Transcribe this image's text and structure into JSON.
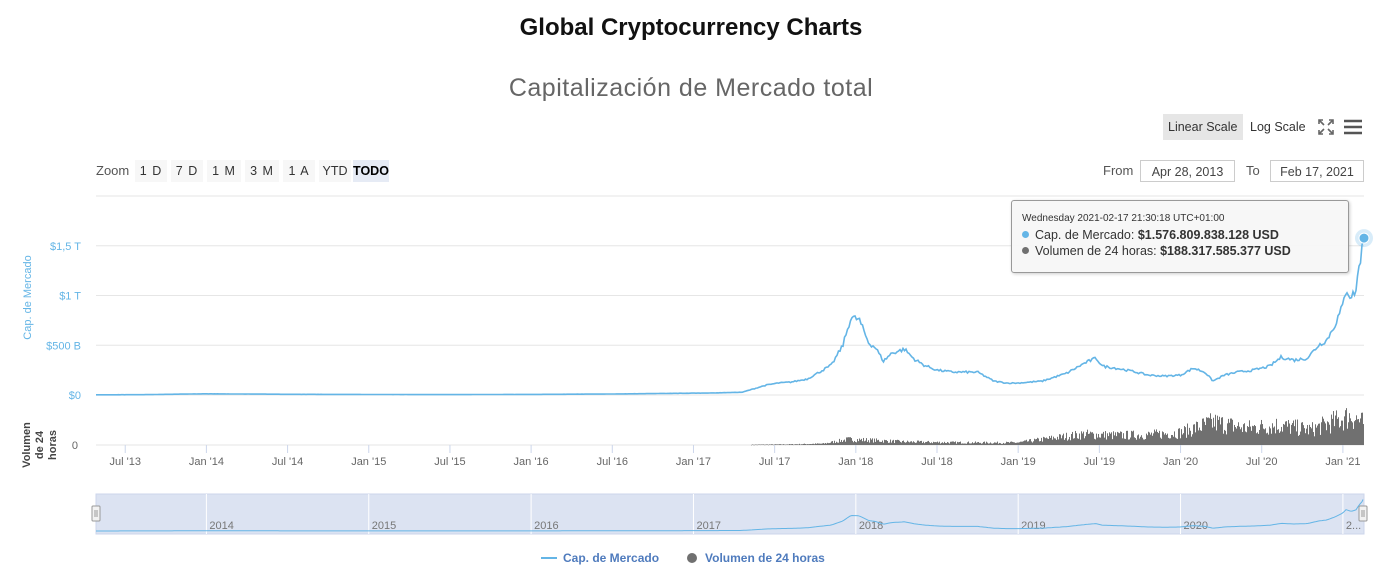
{
  "page": {
    "title": "Global Cryptocurrency Charts"
  },
  "toolbar": {
    "linear_label": "Linear Scale",
    "log_label": "Log Scale",
    "fullscreen_icon": "fullscreen-icon",
    "menu_icon": "hamburger-menu-icon"
  },
  "range_selector": {
    "zoom_label": "Zoom",
    "buttons": [
      "1 D",
      "7 D",
      "1 M",
      "3 M",
      "1 A",
      "YTD",
      "TODO"
    ],
    "active_button": "TODO",
    "from_label": "From",
    "from_value": "Apr 28, 2013",
    "to_label": "To",
    "to_value": "Feb 17, 2021"
  },
  "tooltip": {
    "date": "Wednesday 2021-02-17 21:30:18 UTC+01:00",
    "rows": [
      {
        "label": "Cap. de Mercado:",
        "value": "$1.576.809.838.128 USD"
      },
      {
        "label": "Volumen de 24 horas:",
        "value": "$188.317.585.377 USD"
      }
    ]
  },
  "colors": {
    "market_cap": "#64b5e6",
    "volume": "#707070",
    "navigator_fill": "#dce3f2",
    "legend_text": "#4f7bbd"
  },
  "chart_data": {
    "type": "line",
    "title": "Capitalización de Mercado total",
    "xlabel": "",
    "xlim": [
      2013.32,
      2021.13
    ],
    "x_ticks": [
      "Jul '13",
      "Jan '14",
      "Jul '14",
      "Jan '15",
      "Jul '15",
      "Jan '16",
      "Jul '16",
      "Jan '17",
      "Jul '17",
      "Jan '18",
      "Jul '18",
      "Jan '19",
      "Jul '19",
      "Jan '20",
      "Jul '20",
      "Jan '21"
    ],
    "x_tick_values": [
      2013.5,
      2014,
      2014.5,
      2015,
      2015.5,
      2016,
      2016.5,
      2017,
      2017.5,
      2018,
      2018.5,
      2019,
      2019.5,
      2020,
      2020.5,
      2021
    ],
    "y_axis": {
      "label": "Cap. de Mercado",
      "unit": "billion USD",
      "ylim": [
        0,
        2000
      ],
      "ticks": [
        0,
        500,
        1000,
        1500
      ],
      "tick_labels": [
        "$0",
        "$500 B",
        "$1 T",
        "$1,5 T"
      ]
    },
    "volume_axis": {
      "label_lines": [
        "Volumen",
        "de 24",
        "horas"
      ],
      "tick_labels": [
        "0"
      ],
      "ylim": [
        0,
        400
      ]
    },
    "grid": true,
    "series": [
      {
        "name": "Cap. de Mercado",
        "x": [
          2013.32,
          2013.6,
          2013.9,
          2014.0,
          2014.2,
          2014.5,
          2014.9,
          2015.0,
          2015.5,
          2016.0,
          2016.5,
          2016.9,
          2017.1,
          2017.3,
          2017.45,
          2017.52,
          2017.6,
          2017.7,
          2017.85,
          2017.92,
          2017.97,
          2018.02,
          2018.08,
          2018.12,
          2018.17,
          2018.22,
          2018.3,
          2018.36,
          2018.42,
          2018.5,
          2018.6,
          2018.75,
          2018.85,
          2018.93,
          2019.0,
          2019.15,
          2019.3,
          2019.42,
          2019.48,
          2019.52,
          2019.6,
          2019.7,
          2019.8,
          2019.9,
          2020.0,
          2020.08,
          2020.15,
          2020.2,
          2020.27,
          2020.35,
          2020.45,
          2020.55,
          2020.62,
          2020.7,
          2020.78,
          2020.85,
          2020.9,
          2020.95,
          2021.0,
          2021.02,
          2021.05,
          2021.08,
          2021.1,
          2021.13
        ],
        "values": [
          2,
          3,
          10,
          12,
          10,
          7,
          6,
          5,
          4,
          6,
          10,
          17,
          20,
          28,
          100,
          120,
          130,
          160,
          300,
          500,
          780,
          760,
          520,
          480,
          340,
          420,
          460,
          360,
          300,
          250,
          230,
          230,
          140,
          120,
          120,
          140,
          220,
          330,
          370,
          290,
          270,
          240,
          200,
          190,
          200,
          270,
          230,
          140,
          200,
          230,
          250,
          290,
          380,
          350,
          370,
          500,
          550,
          700,
          900,
          1070,
          980,
          1050,
          1300,
          1577
        ]
      },
      {
        "name": "Volumen de 24 horas",
        "x": [
          2017.35,
          2017.6,
          2017.8,
          2017.95,
          2018.05,
          2018.3,
          2018.6,
          2018.9,
          2019.0,
          2019.2,
          2019.4,
          2019.6,
          2019.8,
          2020.0,
          2020.2,
          2020.4,
          2020.6,
          2020.8,
          2020.95,
          2021.05,
          2021.13
        ],
        "values": [
          3,
          6,
          12,
          50,
          45,
          28,
          22,
          20,
          22,
          60,
          95,
          85,
          90,
          110,
          200,
          150,
          175,
          135,
          210,
          260,
          188
        ]
      }
    ],
    "navigator": {
      "labels": [
        "2014",
        "2015",
        "2016",
        "2017",
        "2018",
        "2019",
        "2020",
        "2..."
      ]
    },
    "legend": [
      "Cap. de Mercado",
      "Volumen de 24 horas"
    ]
  }
}
